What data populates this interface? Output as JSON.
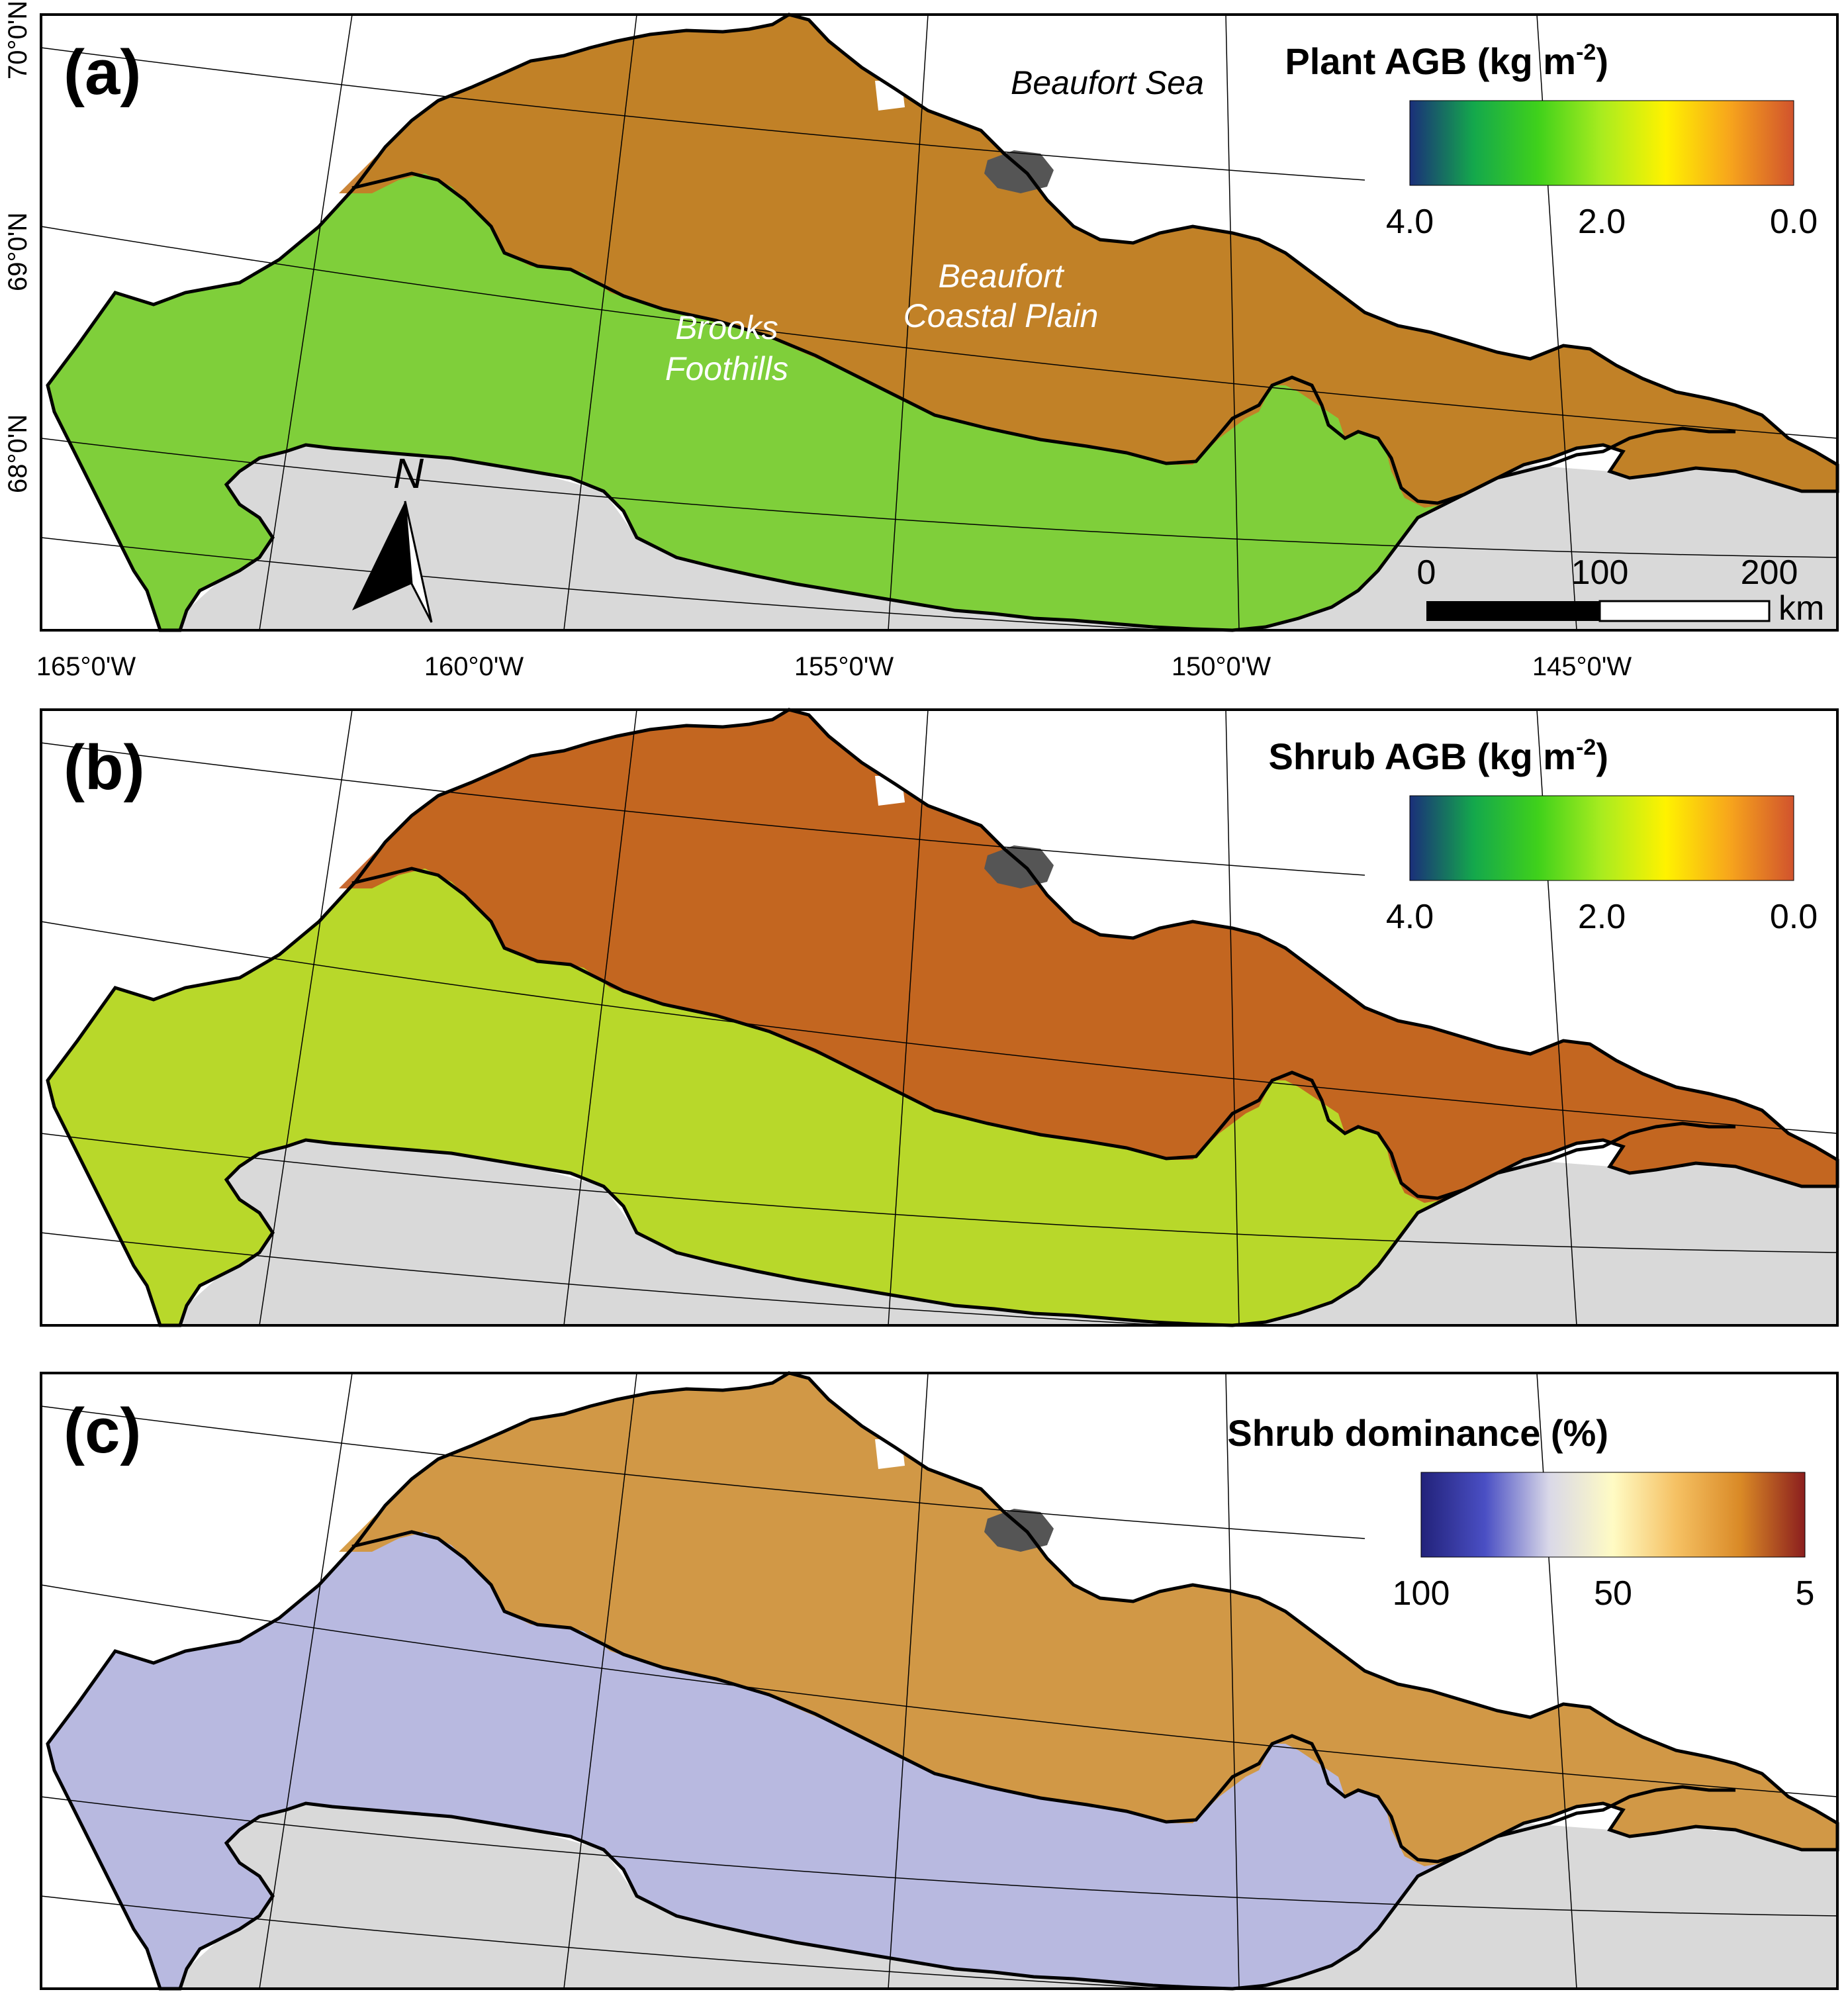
{
  "axes": {
    "lat_labels": [
      "70°0'N",
      "69°0'N",
      "68°0'N"
    ],
    "lon_labels": [
      "165°0'W",
      "160°0'W",
      "155°0'W",
      "150°0'W",
      "145°0'W"
    ]
  },
  "panels": [
    {
      "letter": "(a)",
      "legend_title": "Plant AGB (kg m",
      "legend_sup": "-2",
      "legend_close": ")",
      "legend_ticks": [
        "4.0",
        "2.0",
        "0.0"
      ],
      "colormap": [
        "#1a2f7a",
        "#14a84c",
        "#3fd11b",
        "#a9ec1f",
        "#fff200",
        "#f7a51c",
        "#d1532d"
      ],
      "fill_color": "#7fcf3a",
      "north_fill_color": "#c77b26"
    },
    {
      "letter": "(b)",
      "legend_title": "Shrub AGB (kg m",
      "legend_sup": "-2",
      "legend_close": ")",
      "legend_ticks": [
        "4.0",
        "2.0",
        "0.0"
      ],
      "colormap": [
        "#1a2f7a",
        "#14a84c",
        "#3fd11b",
        "#a9ec1f",
        "#fff200",
        "#f7a51c",
        "#d1532d"
      ],
      "fill_color": "#b8d82a",
      "north_fill_color": "#c35c1f"
    },
    {
      "letter": "(c)",
      "legend_title": "Shrub dominance (%)",
      "legend_sup": "",
      "legend_close": "",
      "legend_ticks": [
        "100",
        "50",
        "5"
      ],
      "colormap": [
        "#22227a",
        "#4a4fc4",
        "#d9d8e8",
        "#fffbc4",
        "#f5c062",
        "#d98926",
        "#8b1e1e"
      ],
      "fill_color": "#b8b9e0",
      "north_fill_color": "#d39538"
    }
  ],
  "labels": {
    "sea": "Beaufort Sea",
    "region1_line1": "Brooks",
    "region1_line2": "Foothills",
    "region2_line1": "Beaufort",
    "region2_line2": "Coastal Plain",
    "north": "N"
  },
  "scalebar": {
    "ticks": [
      "0",
      "100",
      "200"
    ],
    "unit": "km"
  },
  "colors": {
    "land_outside": "#d9d9d9",
    "lake": "#555555",
    "water": "#ffffff"
  }
}
